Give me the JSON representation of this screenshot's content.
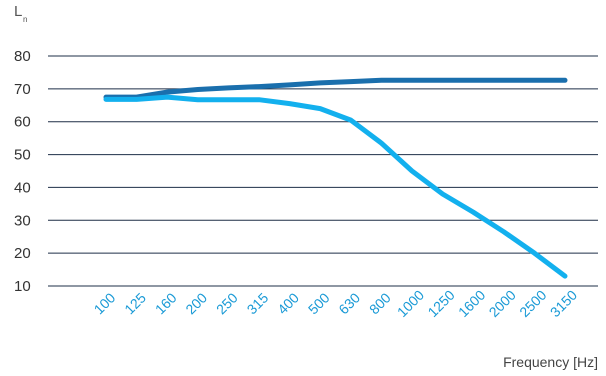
{
  "chart_data": {
    "type": "line",
    "ylabel": "L",
    "ylabel_sub": "n",
    "xlabel": "Frequency [Hz]",
    "categories": [
      "100",
      "125",
      "160",
      "200",
      "250",
      "315",
      "400",
      "500",
      "630",
      "800",
      "1000",
      "1250",
      "1600",
      "2000",
      "2500",
      "3150"
    ],
    "ylim": [
      10,
      80
    ],
    "yticks": [
      80,
      70,
      60,
      50,
      40,
      30,
      20,
      10
    ],
    "grid": true,
    "series": [
      {
        "values": [
          67.5,
          67.5,
          69,
          69.8,
          70.3,
          70.7,
          71.2,
          71.8,
          72.2,
          72.6,
          72.6,
          72.6,
          72.6,
          72.6,
          72.6,
          72.6
        ],
        "color": "#1a6fad"
      },
      {
        "values": [
          66.8,
          66.8,
          67.5,
          66.7,
          66.7,
          66.7,
          65.5,
          64.0,
          60.5,
          53.5,
          45.0,
          38.0,
          32.5,
          26.5,
          20.0,
          13.0
        ],
        "color": "#13b0ee"
      }
    ],
    "gridline_color": "#1e2f47",
    "tick_color": "#1a9ad6"
  }
}
